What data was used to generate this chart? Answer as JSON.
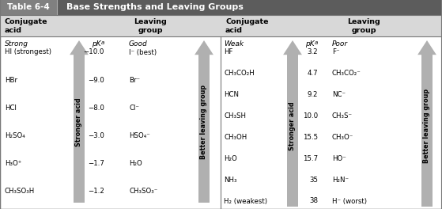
{
  "title_num": "Table 6-4",
  "title_text": "Base Strengths and Leaving Groups",
  "left_label_italic": "Strong",
  "left_label_good": "Good",
  "right_label_italic": "Weak",
  "right_label_poor": "Poor",
  "left_rows": [
    [
      "HI (strongest)",
      "−10.0",
      "I⁻ (best)"
    ],
    [
      "HBr",
      "−9.0",
      "Br⁻"
    ],
    [
      "HCl",
      "−8.0",
      "Cl⁻"
    ],
    [
      "H₂SO₄",
      "−3.0",
      "HSO₄⁻"
    ],
    [
      "H₃O⁺",
      "−1.7",
      "H₂O"
    ],
    [
      "CH₃SO₃H",
      "−1.2",
      "CH₃SO₃⁻"
    ]
  ],
  "right_rows": [
    [
      "HF",
      "3.2",
      "F⁻"
    ],
    [
      "CH₃CO₂H",
      "4.7",
      "CH₃CO₂⁻"
    ],
    [
      "HCN",
      "9.2",
      "NC⁻"
    ],
    [
      "CH₃SH",
      "10.0",
      "CH₃S⁻"
    ],
    [
      "CH₃OH",
      "15.5",
      "CH₃O⁻"
    ],
    [
      "H₂O",
      "15.7",
      "HO⁻"
    ],
    [
      "NH₃",
      "35",
      "H₂N⁻"
    ],
    [
      "H₂ (weakest)",
      "38",
      "H⁻ (worst)"
    ]
  ],
  "header_dark": "#5c5c5c",
  "header_tab_bg": "#808080",
  "subheader_bg": "#d8d8d8",
  "arrow_color": "#b0b0b0",
  "border_color": "#777777"
}
